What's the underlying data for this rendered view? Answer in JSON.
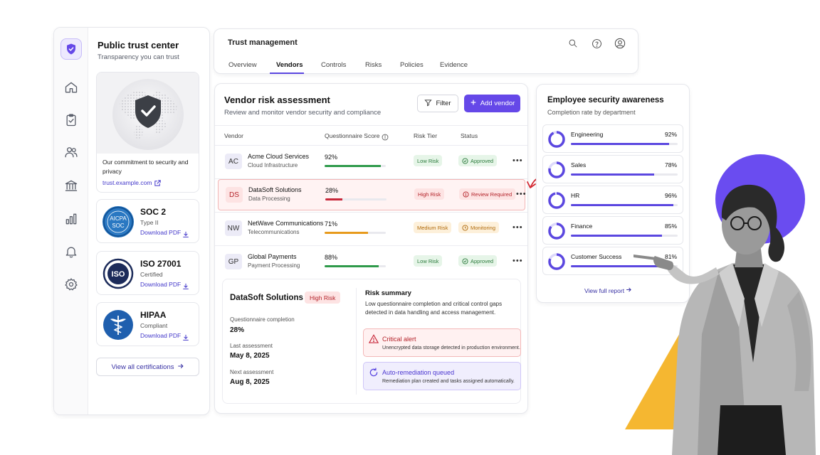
{
  "sidebar": {
    "title": "Public trust center",
    "subtitle": "Transparency you can trust",
    "nav_icons": [
      "home-icon",
      "clipboard-check-icon",
      "users-icon",
      "bank-icon",
      "bar-chart-icon",
      "bell-icon",
      "gear-icon"
    ],
    "commitment_text": "Our commitment to security and privacy",
    "commitment_link": "trust.example.com",
    "certifications": [
      {
        "name": "SOC 2",
        "detail": "Type II",
        "download": "Download PDF",
        "seal": "AICPA SOC"
      },
      {
        "name": "ISO 27001",
        "detail": "Certified",
        "download": "Download PDF",
        "seal": "ISO"
      },
      {
        "name": "HIPAA",
        "detail": "Compliant",
        "download": "Download PDF",
        "seal": "caduceus"
      }
    ],
    "view_all": "View all certifications"
  },
  "topnav": {
    "title": "Trust management",
    "tabs": [
      "Overview",
      "Vendors",
      "Controls",
      "Risks",
      "Policies",
      "Evidence"
    ],
    "active_tab": "Vendors"
  },
  "vendors": {
    "title": "Vendor risk assessment",
    "subtitle": "Review and monitor vendor security and compliance",
    "filter_label": "Filter",
    "add_label": "Add vendor",
    "columns": [
      "Vendor",
      "Questionnaire Score",
      "Risk Tier",
      "Status"
    ],
    "rows": [
      {
        "initials": "AC",
        "name": "Acme Cloud Services",
        "category": "Cloud Infrastructure",
        "score": "92%",
        "score_value": 92,
        "tier": "Low Risk",
        "status": "Approved"
      },
      {
        "initials": "DS",
        "name": "DataSoft Solutions",
        "category": "Data Processing",
        "score": "28%",
        "score_value": 28,
        "tier": "High Risk",
        "status": "Review Required"
      },
      {
        "initials": "NW",
        "name": "NetWave Communications",
        "category": "Telecommunications",
        "score": "71%",
        "score_value": 71,
        "tier": "Medium Risk",
        "status": "Monitoring"
      },
      {
        "initials": "GP",
        "name": "Global Payments",
        "category": "Payment Processing",
        "score": "88%",
        "score_value": 88,
        "tier": "Low Risk",
        "status": "Approved"
      }
    ],
    "detail": {
      "name": "DataSoft Solutions",
      "tier": "High Risk",
      "q_label": "Questionnaire completion",
      "q_value": "28%",
      "last_label": "Last assessment",
      "last_value": "May 8, 2025",
      "next_label": "Next assessment",
      "next_value": "Aug 8, 2025",
      "summary_title": "Risk summary",
      "summary_text": "Low questionnaire completion and critical control gaps detected in data handling and access management.",
      "alert_title": "Critical alert",
      "alert_text": "Unencrypted data storage detected in production environment.",
      "remed_title": "Auto-remediation queued",
      "remed_text": "Remediation plan created and tasks assigned automatically."
    }
  },
  "awareness": {
    "title": "Employee security awareness",
    "subtitle": "Completion rate by department",
    "departments": [
      {
        "name": "Engineering",
        "pct": "92%",
        "value": 92
      },
      {
        "name": "Sales",
        "pct": "78%",
        "value": 78
      },
      {
        "name": "HR",
        "pct": "96%",
        "value": 96
      },
      {
        "name": "Finance",
        "pct": "85%",
        "value": 85
      },
      {
        "name": "Customer Success",
        "pct": "81%",
        "value": 81
      }
    ],
    "link": "View full report"
  },
  "colors": {
    "accent": "#6548e8",
    "green": "#2e9a4a",
    "red": "#c8283a",
    "orange": "#e79a1c",
    "yellow": "#f5b731"
  }
}
